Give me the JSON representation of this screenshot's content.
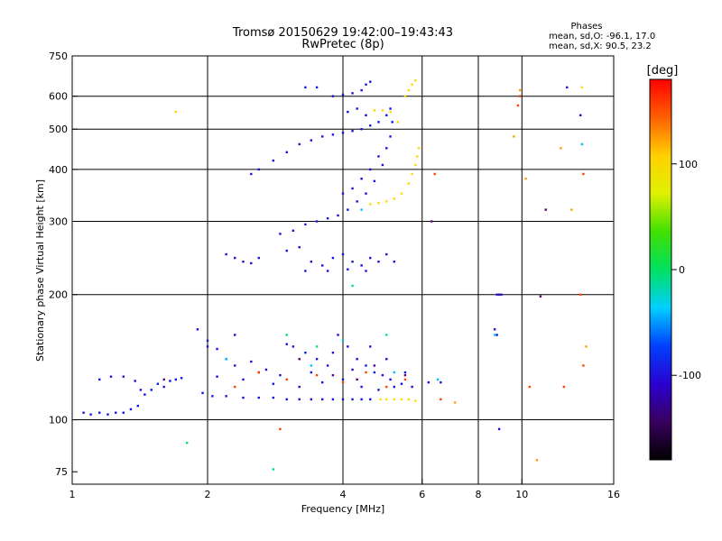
{
  "chart_data": {
    "type": "scatter",
    "title": "Tromsø 20150629 19:42:00–19:43:43",
    "subtitle": "RwPretec (8p)",
    "xlabel": "Frequency [MHz]",
    "ylabel": "Stationary phase Virtual Height [km]",
    "x_scale": "log2",
    "y_scale": "log",
    "xlim": [
      1,
      16
    ],
    "ylim": [
      70,
      750
    ],
    "x_ticks": [
      {
        "label": "1",
        "value": 1
      },
      {
        "label": "2",
        "value": 2
      },
      {
        "label": "4",
        "value": 4
      },
      {
        "label": "6",
        "value": 6
      },
      {
        "label": "8",
        "value": 8
      },
      {
        "label": "10",
        "value": 10
      },
      {
        "label": "16",
        "value": 16
      }
    ],
    "x_grid": [
      2,
      4,
      6,
      8,
      10
    ],
    "y_ticks": [
      {
        "label": "75",
        "value": 75
      },
      {
        "label": "100",
        "value": 100
      },
      {
        "label": "200",
        "value": 200
      },
      {
        "label": "300",
        "value": 300
      },
      {
        "label": "400",
        "value": 400
      },
      {
        "label": "500",
        "value": 500
      },
      {
        "label": "600",
        "value": 600
      },
      {
        "label": "750",
        "value": 750
      }
    ],
    "y_grid": [
      100,
      200,
      300,
      400,
      500,
      600
    ],
    "grid": true,
    "stats": {
      "title": "Phases",
      "line1": "mean, sd,O: -96.1, 17.0",
      "line2": "mean, sd,X:  90.5, 23.2"
    },
    "colorbar": {
      "label": "[deg]",
      "range": [
        -180,
        180
      ],
      "ticks": [
        {
          "label": "100",
          "value": 100
        },
        {
          "label": "0",
          "value": 0
        },
        {
          "label": "-100",
          "value": -100
        }
      ],
      "colors": [
        "#000000",
        "#3a0060",
        "#2a00d0",
        "#0040ff",
        "#00d0ff",
        "#00e060",
        "#40e000",
        "#e0f000",
        "#ffd000",
        "#ff6000",
        "#ff0000"
      ]
    },
    "series": [
      {
        "phase": -100,
        "color": "#1414e0",
        "points": [
          [
            1.06,
            104
          ],
          [
            1.1,
            103
          ],
          [
            1.15,
            104
          ],
          [
            1.2,
            103
          ],
          [
            1.25,
            104
          ],
          [
            1.3,
            104
          ],
          [
            1.35,
            106
          ],
          [
            1.4,
            108
          ],
          [
            1.45,
            115
          ],
          [
            1.5,
            118
          ],
          [
            1.55,
            122
          ],
          [
            1.6,
            120
          ],
          [
            1.65,
            124
          ],
          [
            1.7,
            125
          ],
          [
            1.75,
            126
          ],
          [
            1.15,
            125
          ],
          [
            1.22,
            127
          ],
          [
            1.3,
            127
          ],
          [
            1.38,
            124
          ],
          [
            1.42,
            118
          ],
          [
            1.95,
            116
          ],
          [
            2.05,
            114
          ],
          [
            2.2,
            114
          ],
          [
            2.4,
            113
          ],
          [
            2.6,
            113
          ],
          [
            2.8,
            113
          ],
          [
            3.0,
            112
          ],
          [
            3.2,
            112
          ],
          [
            3.4,
            112
          ],
          [
            3.6,
            112
          ],
          [
            3.8,
            112
          ],
          [
            4.0,
            112
          ],
          [
            4.2,
            112
          ],
          [
            4.4,
            112
          ],
          [
            4.6,
            112
          ],
          [
            1.9,
            165
          ],
          [
            2.0,
            155
          ],
          [
            2.1,
            148
          ],
          [
            2.2,
            140
          ],
          [
            2.3,
            135
          ],
          [
            2.5,
            138
          ],
          [
            2.7,
            132
          ],
          [
            2.9,
            128
          ],
          [
            3.1,
            150
          ],
          [
            3.3,
            145
          ],
          [
            3.5,
            140
          ],
          [
            3.7,
            135
          ],
          [
            3.9,
            160
          ],
          [
            4.1,
            150
          ],
          [
            4.3,
            140
          ],
          [
            4.5,
            135
          ],
          [
            4.7,
            130
          ],
          [
            4.9,
            128
          ],
          [
            5.1,
            125
          ],
          [
            5.4,
            122
          ],
          [
            5.7,
            120
          ],
          [
            2.1,
            127
          ],
          [
            2.4,
            125
          ],
          [
            2.8,
            122
          ],
          [
            3.2,
            120
          ],
          [
            3.6,
            123
          ],
          [
            4.0,
            125
          ],
          [
            4.4,
            120
          ],
          [
            4.8,
            118
          ],
          [
            5.2,
            120
          ],
          [
            6.2,
            123
          ],
          [
            6.6,
            123
          ],
          [
            2.0,
            150
          ],
          [
            2.3,
            160
          ],
          [
            3.0,
            152
          ],
          [
            3.4,
            130
          ],
          [
            3.8,
            145
          ],
          [
            4.2,
            132
          ],
          [
            4.6,
            150
          ],
          [
            5.0,
            140
          ],
          [
            5.5,
            130
          ],
          [
            2.2,
            250
          ],
          [
            2.3,
            245
          ],
          [
            2.4,
            240
          ],
          [
            2.5,
            238
          ],
          [
            2.6,
            245
          ],
          [
            3.0,
            255
          ],
          [
            3.2,
            260
          ],
          [
            3.4,
            240
          ],
          [
            3.6,
            235
          ],
          [
            3.8,
            245
          ],
          [
            4.0,
            250
          ],
          [
            4.2,
            240
          ],
          [
            4.4,
            235
          ],
          [
            4.6,
            245
          ],
          [
            4.8,
            240
          ],
          [
            5.0,
            250
          ],
          [
            5.2,
            240
          ],
          [
            3.3,
            228
          ],
          [
            3.7,
            228
          ],
          [
            4.1,
            230
          ],
          [
            4.5,
            228
          ],
          [
            2.5,
            390
          ],
          [
            2.6,
            400
          ],
          [
            2.8,
            420
          ],
          [
            3.0,
            440
          ],
          [
            3.2,
            460
          ],
          [
            3.4,
            470
          ],
          [
            3.6,
            480
          ],
          [
            3.8,
            485
          ],
          [
            4.0,
            490
          ],
          [
            4.2,
            495
          ],
          [
            4.4,
            500
          ],
          [
            4.6,
            510
          ],
          [
            4.8,
            520
          ],
          [
            5.0,
            540
          ],
          [
            5.1,
            560
          ],
          [
            2.9,
            280
          ],
          [
            3.1,
            285
          ],
          [
            3.3,
            295
          ],
          [
            3.5,
            300
          ],
          [
            3.7,
            305
          ],
          [
            3.9,
            310
          ],
          [
            4.1,
            320
          ],
          [
            4.3,
            335
          ],
          [
            4.5,
            350
          ],
          [
            4.7,
            375
          ],
          [
            4.9,
            410
          ],
          [
            5.0,
            450
          ],
          [
            5.1,
            480
          ],
          [
            5.15,
            520
          ],
          [
            3.3,
            630
          ],
          [
            3.5,
            630
          ],
          [
            3.8,
            600
          ],
          [
            4.0,
            605
          ],
          [
            4.2,
            610
          ],
          [
            4.4,
            620
          ],
          [
            4.5,
            640
          ],
          [
            4.6,
            650
          ],
          [
            4.1,
            550
          ],
          [
            4.3,
            560
          ],
          [
            4.5,
            540
          ],
          [
            4.0,
            350
          ],
          [
            4.2,
            360
          ],
          [
            4.4,
            380
          ],
          [
            4.6,
            400
          ],
          [
            4.8,
            430
          ],
          [
            8.8,
            200
          ],
          [
            9.0,
            200
          ],
          [
            8.7,
            165
          ],
          [
            8.8,
            160
          ],
          [
            8.9,
            95
          ],
          [
            13.5,
            540
          ],
          [
            12.6,
            630
          ]
        ]
      },
      {
        "phase": 100,
        "color": "#ffd800",
        "points": [
          [
            4.85,
            112
          ],
          [
            5.0,
            112
          ],
          [
            5.2,
            112
          ],
          [
            5.4,
            112
          ],
          [
            5.6,
            112
          ],
          [
            5.8,
            111
          ],
          [
            4.6,
            330
          ],
          [
            4.8,
            332
          ],
          [
            5.0,
            335
          ],
          [
            5.2,
            340
          ],
          [
            5.4,
            350
          ],
          [
            5.6,
            370
          ],
          [
            5.7,
            390
          ],
          [
            5.8,
            410
          ],
          [
            5.85,
            430
          ],
          [
            5.9,
            450
          ],
          [
            5.5,
            600
          ],
          [
            5.6,
            620
          ],
          [
            5.7,
            640
          ],
          [
            5.8,
            655
          ],
          [
            4.7,
            555
          ],
          [
            4.9,
            555
          ],
          [
            5.1,
            550
          ],
          [
            1.7,
            550
          ],
          [
            5.3,
            520
          ],
          [
            13.6,
            630
          ]
        ]
      },
      {
        "phase": 0,
        "color": "#00e070",
        "points": [
          [
            1.8,
            88
          ],
          [
            2.8,
            76
          ],
          [
            3.5,
            150
          ],
          [
            4.2,
            210
          ],
          [
            5.0,
            160
          ],
          [
            3.0,
            160
          ]
        ]
      },
      {
        "phase": 40,
        "color": "#00c0ff",
        "points": [
          [
            2.2,
            140
          ],
          [
            3.4,
            135
          ],
          [
            4.0,
            155
          ],
          [
            5.2,
            130
          ],
          [
            6.5,
            125
          ],
          [
            8.7,
            160
          ],
          [
            13.6,
            460
          ],
          [
            4.4,
            320
          ]
        ]
      },
      {
        "phase": -150,
        "color": "#5a0080",
        "points": [
          [
            2.6,
            130
          ],
          [
            3.2,
            140
          ],
          [
            3.8,
            128
          ],
          [
            4.3,
            125
          ],
          [
            4.7,
            135
          ],
          [
            5.5,
            128
          ],
          [
            6.3,
            300
          ],
          [
            11.3,
            320
          ],
          [
            8.9,
            200
          ],
          [
            11.0,
            198
          ],
          [
            1.6,
            125
          ]
        ]
      },
      {
        "phase": 150,
        "color": "#ff4000",
        "points": [
          [
            2.3,
            120
          ],
          [
            2.6,
            130
          ],
          [
            3.0,
            125
          ],
          [
            3.5,
            128
          ],
          [
            4.0,
            123
          ],
          [
            4.5,
            130
          ],
          [
            5.0,
            120
          ],
          [
            5.5,
            125
          ],
          [
            6.4,
            390
          ],
          [
            6.6,
            112
          ],
          [
            9.8,
            570
          ],
          [
            9.9,
            600
          ],
          [
            13.7,
            390
          ],
          [
            13.7,
            135
          ],
          [
            13.5,
            200
          ],
          [
            10.4,
            120
          ],
          [
            12.4,
            120
          ],
          [
            2.9,
            95
          ]
        ]
      },
      {
        "phase": 110,
        "color": "#ffa000",
        "points": [
          [
            7.1,
            110
          ],
          [
            9.6,
            480
          ],
          [
            9.9,
            620
          ],
          [
            10.2,
            380
          ],
          [
            12.9,
            320
          ],
          [
            13.9,
            150
          ],
          [
            10.8,
            80
          ],
          [
            12.2,
            450
          ]
        ]
      }
    ]
  }
}
